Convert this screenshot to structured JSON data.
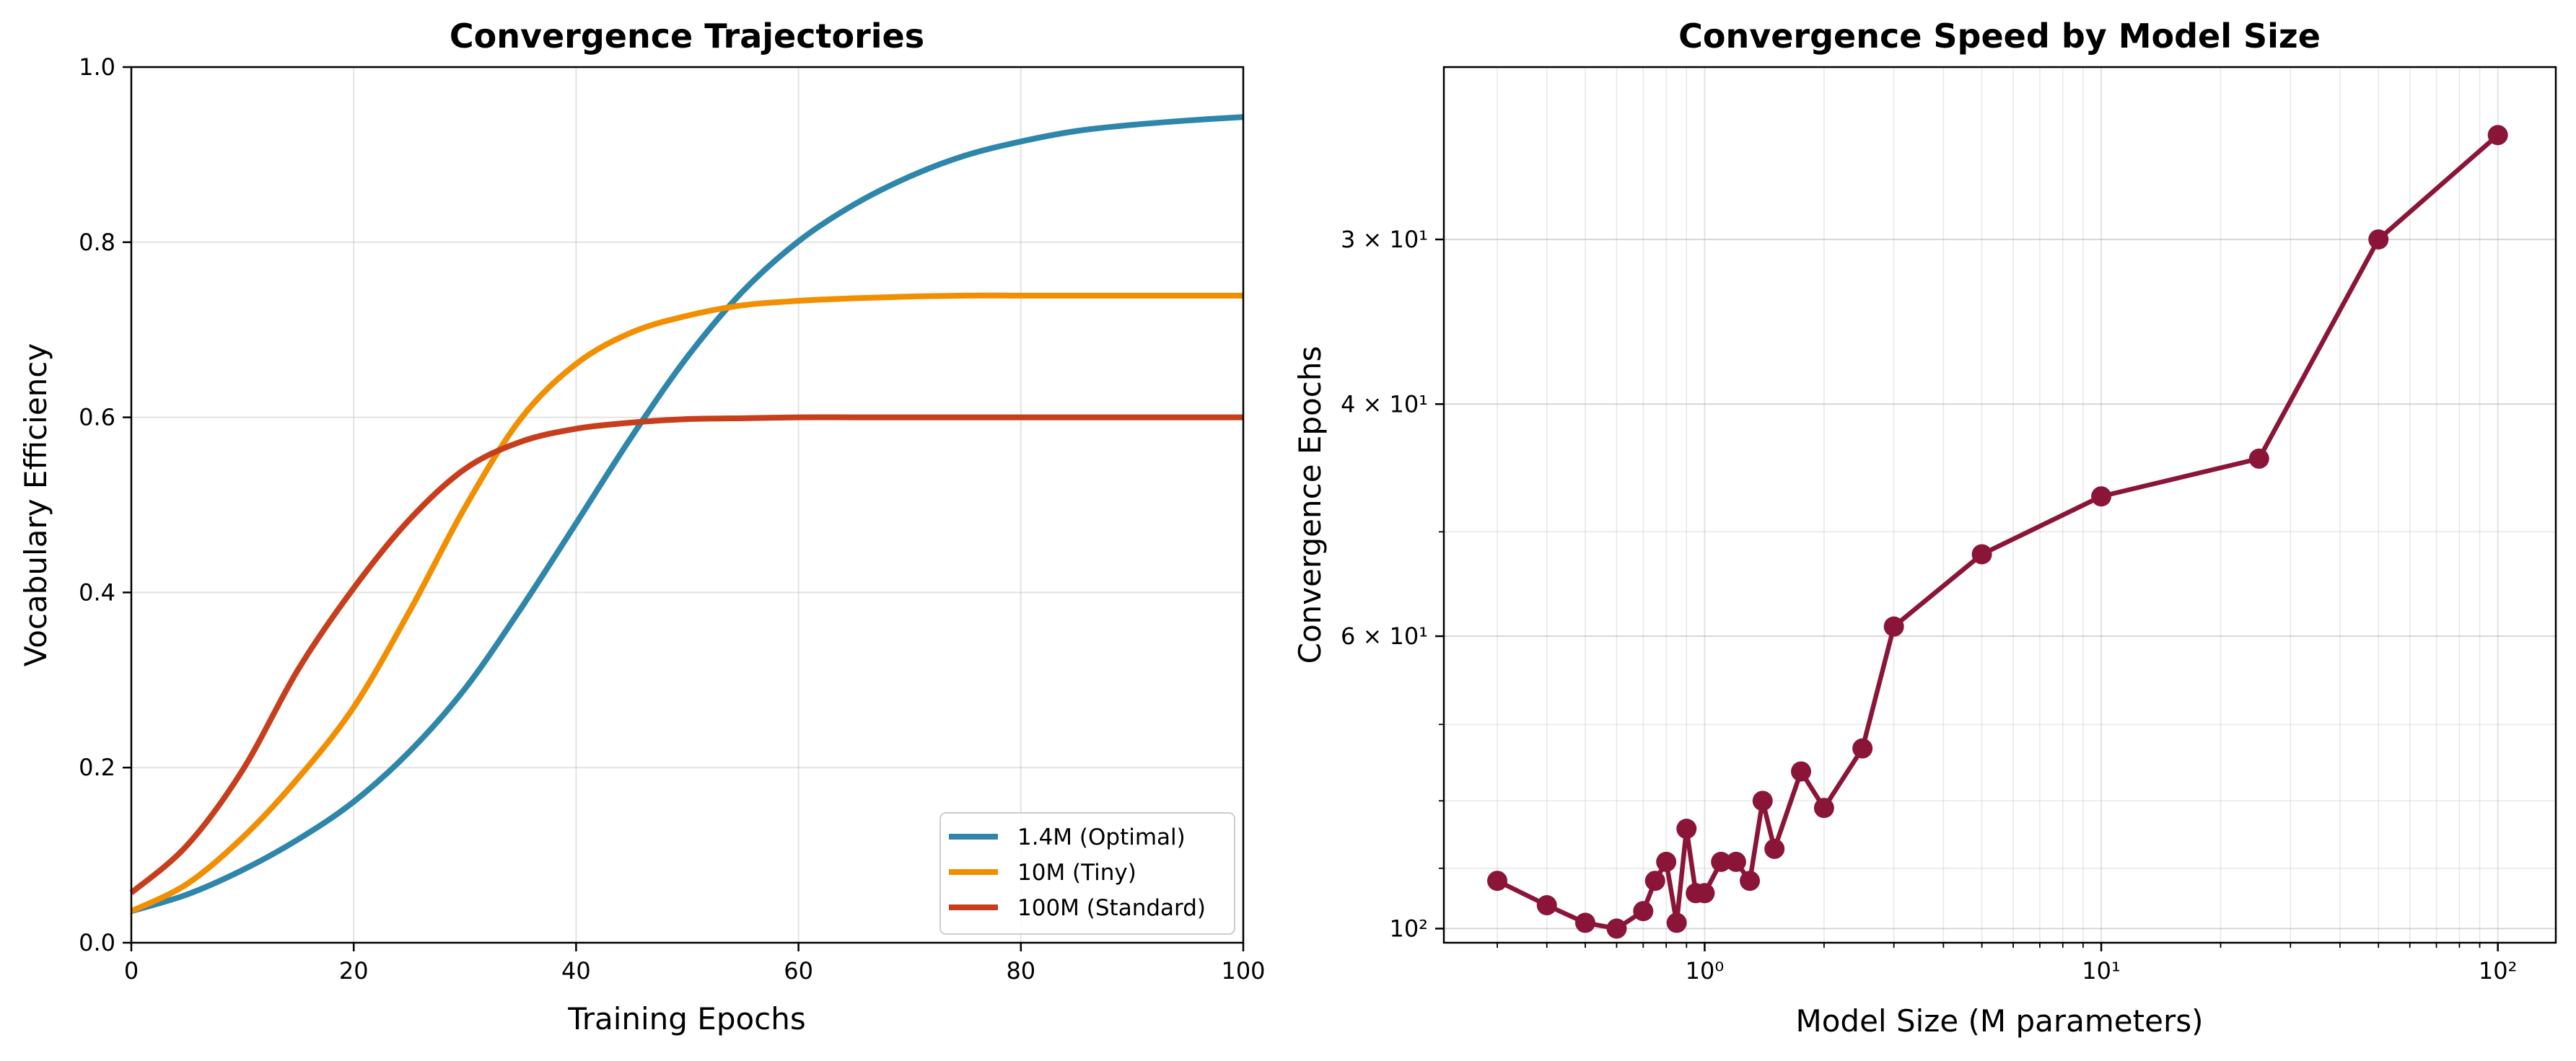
{
  "chart_data": [
    {
      "type": "line",
      "title": "Convergence Trajectories",
      "xlabel": "Training Epochs",
      "ylabel": "Vocabulary Efficiency",
      "xlim": [
        0,
        100
      ],
      "ylim": [
        0,
        1.0
      ],
      "xticks": [
        0,
        20,
        40,
        60,
        80,
        100
      ],
      "xtick_labels": [
        "0",
        "20",
        "40",
        "60",
        "80",
        "100"
      ],
      "yticks": [
        0,
        0.2,
        0.4,
        0.6,
        0.8,
        1.0
      ],
      "ytick_labels": [
        "0.0",
        "0.2",
        "0.4",
        "0.6",
        "0.8",
        "1.0"
      ],
      "grid": true,
      "legend_position": "lower right",
      "x": [
        0,
        5,
        10,
        15,
        20,
        25,
        30,
        35,
        40,
        45,
        50,
        55,
        60,
        65,
        70,
        75,
        80,
        85,
        90,
        95,
        100
      ],
      "series": [
        {
          "name": "1.4M (Optimal)",
          "color": "#2e86ab",
          "values": [
            0.036,
            0.055,
            0.083,
            0.118,
            0.161,
            0.218,
            0.29,
            0.381,
            0.479,
            0.578,
            0.669,
            0.744,
            0.801,
            0.843,
            0.875,
            0.899,
            0.915,
            0.927,
            0.934,
            0.939,
            0.943
          ]
        },
        {
          "name": "10M (Tiny)",
          "color": "#f18f01",
          "values": [
            0.036,
            0.067,
            0.12,
            0.188,
            0.269,
            0.378,
            0.497,
            0.598,
            0.661,
            0.697,
            0.716,
            0.728,
            0.733,
            0.736,
            0.738,
            0.739,
            0.739,
            0.739,
            0.739,
            0.739,
            0.739
          ]
        },
        {
          "name": "100M (Standard)",
          "color": "#c73e1d",
          "values": [
            0.057,
            0.111,
            0.197,
            0.312,
            0.405,
            0.483,
            0.541,
            0.572,
            0.587,
            0.594,
            0.598,
            0.599,
            0.6,
            0.6,
            0.6,
            0.6,
            0.6,
            0.6,
            0.6,
            0.6,
            0.6
          ]
        }
      ]
    },
    {
      "type": "scatter",
      "title": "Convergence Speed by Model Size",
      "xlabel": "Model Size (M parameters)",
      "ylabel": "Convergence Epochs",
      "xscale": "log",
      "yscale": "log",
      "y_axis_inverted": true,
      "xlim": [
        0.22,
        140
      ],
      "ylim": [
        102.5,
        22.2
      ],
      "xticks": [
        1,
        10,
        100
      ],
      "xtick_labels": [
        "10⁰",
        "10¹",
        "10²"
      ],
      "yticks": [
        30,
        40,
        60,
        100
      ],
      "ytick_labels": [
        "3 × 10¹",
        "4 × 10¹",
        "6 × 10¹",
        "10²"
      ],
      "grid": true,
      "series": [
        {
          "name": "",
          "color": "#8b1538",
          "x": [
            0.3,
            0.4,
            0.5,
            0.6,
            0.7,
            0.75,
            0.8,
            0.85,
            0.9,
            0.95,
            1.0,
            1.1,
            1.2,
            1.3,
            1.4,
            1.5,
            1.75,
            2.0,
            2.5,
            3.0,
            5.0,
            10.0,
            25.0,
            50.0,
            100.0
          ],
          "values": [
            92,
            96,
            99,
            100,
            97,
            92,
            89,
            99,
            84,
            94,
            94,
            89,
            89,
            92,
            80,
            87,
            76,
            81,
            73,
            59,
            52,
            47,
            44,
            30,
            25
          ]
        }
      ]
    }
  ]
}
